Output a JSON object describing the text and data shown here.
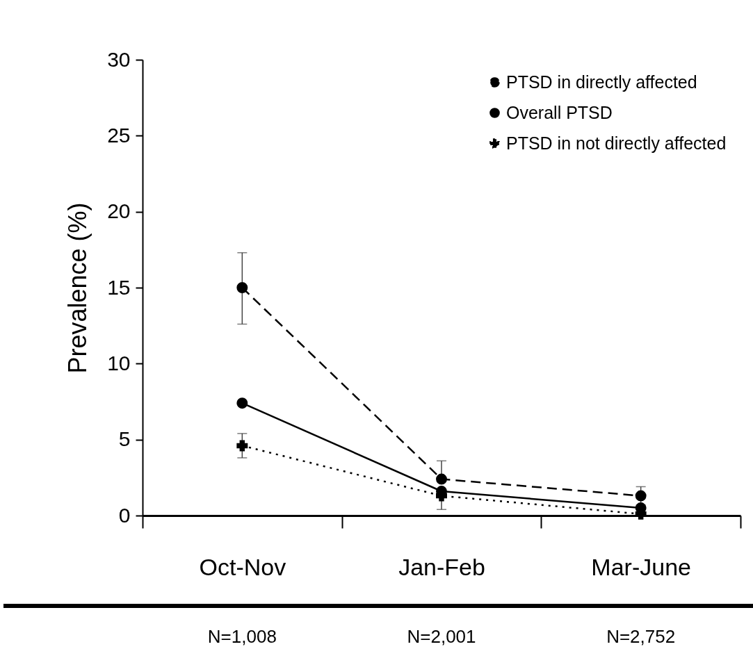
{
  "chart_data": {
    "type": "line",
    "ylabel": "Prevalence (%)",
    "categories": [
      "Oct-Nov",
      "Jan-Feb",
      "Mar-June"
    ],
    "series": [
      {
        "name": "PTSD in directly affected",
        "color": "#000000",
        "marker": "circle",
        "line_style": "dashed",
        "values": [
          15.0,
          2.4,
          1.3
        ],
        "errors": [
          [
            12.6,
            17.3
          ],
          [
            2.4,
            3.6
          ],
          [
            0.7,
            1.9
          ]
        ]
      },
      {
        "name": "Overall PTSD",
        "color": "#000000",
        "marker": "circle",
        "line_style": "solid",
        "values": [
          7.4,
          1.6,
          0.5
        ]
      },
      {
        "name": "PTSD in not directly affected",
        "color": "#000000",
        "marker": "cross",
        "line_style": "dotted",
        "values": [
          4.6,
          1.3,
          0.1
        ],
        "errors": [
          [
            3.8,
            5.4
          ],
          [
            0.4,
            1.3
          ],
          null
        ]
      }
    ],
    "ylim": [
      0,
      30
    ],
    "yticks": [
      0,
      5,
      10,
      15,
      20,
      25,
      30
    ],
    "grid": false,
    "legend": "top right",
    "annotations": [
      "N=1,008",
      "N=2,001",
      "N=2,752"
    ]
  }
}
